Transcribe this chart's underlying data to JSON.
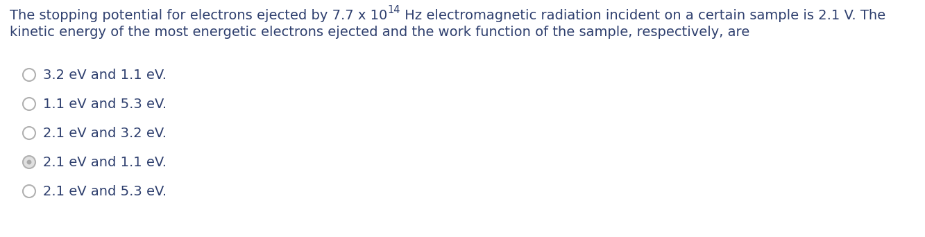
{
  "background_color": "#ffffff",
  "line1_before_exp": "The stopping potential for electrons ejected by 7.7 x 10",
  "line1_exp": "14",
  "line1_after_exp": " Hz electromagnetic radiation incident on a certain sample is 2.1 V. The",
  "line2": "kinetic energy of the most energetic electrons ejected and the work function of the sample, respectively, are",
  "options": [
    "3.2 eV and 1.1 eV.",
    "1.1 eV and 5.3 eV.",
    "2.1 eV and 3.2 eV.",
    "2.1 eV and 1.1 eV.",
    "2.1 eV and 5.3 eV."
  ],
  "selected_index": 3,
  "text_color": "#2e3f6e",
  "circle_edge_color": "#b0b0b0",
  "circle_face_color": "#ffffff",
  "selected_circle_edge": "#b0b0b0",
  "selected_circle_face": "#e0e0e0",
  "font_size_question": 14.0,
  "font_size_options": 14.0,
  "font_size_sup": 10.5
}
